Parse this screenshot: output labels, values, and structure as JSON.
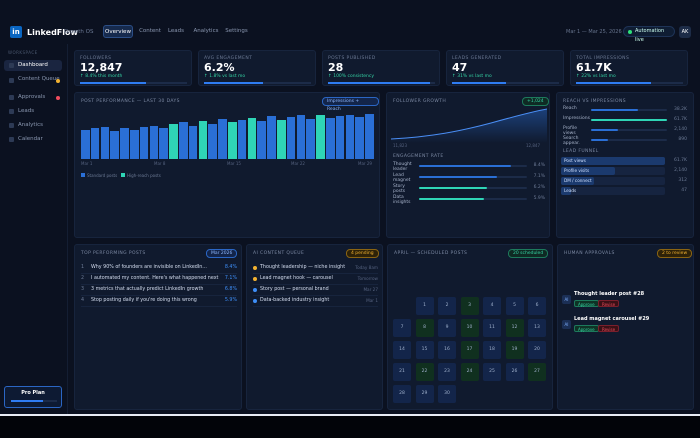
{
  "app": {
    "logo": "in",
    "name": "LinkedFlow",
    "subtitle": "Growth OS"
  },
  "nav": {
    "tabs": [
      "Overview",
      "Content",
      "Leads",
      "Analytics",
      "Settings"
    ],
    "active": 0
  },
  "header": {
    "date_range": "Mar 1 — Mar 25, 2026",
    "status": "Automation live",
    "avatar": "AK"
  },
  "sidebar": {
    "section": "WORKSPACE",
    "items": [
      {
        "label": "Dashboard",
        "active": true,
        "badge": null
      },
      {
        "label": "Content Queue",
        "badge": "#f2b231"
      },
      {
        "label": "Approvals",
        "badge": "#f04d5e"
      },
      {
        "label": "Leads",
        "badge": null
      },
      {
        "label": "Analytics",
        "badge": null
      },
      {
        "label": "Calendar",
        "badge": null
      }
    ],
    "plan": {
      "label": "Pro Plan",
      "usage": 0.7
    }
  },
  "kpis": [
    {
      "label": "FOLLOWERS",
      "value": "12,847",
      "change": "↑ 8.4% this month",
      "progress": 0.62
    },
    {
      "label": "AVG ENGAGEMENT",
      "value": "6.2%",
      "change": "↑ 1.8% vs last mo",
      "progress": 0.55
    },
    {
      "label": "POSTS PUBLISHED",
      "value": "28",
      "change": "↑ 100% consistency",
      "progress": 0.95
    },
    {
      "label": "LEADS GENERATED",
      "value": "47",
      "change": "↑ 31% vs last mo",
      "progress": 0.5
    },
    {
      "label": "TOTAL IMPRESSIONS",
      "value": "61.7K",
      "change": "↑ 22% vs last mo",
      "progress": 0.7
    }
  ],
  "post_performance": {
    "title": "POST PERFORMANCE — LAST 30 DAYS",
    "badge": "Impressions + Reach",
    "legend": [
      "Standard posts",
      "High-reach posts"
    ],
    "x_ticks": [
      "Mar 1",
      "Mar 8",
      "Mar 15",
      "Mar 22",
      "Mar 29"
    ]
  },
  "chart_data": {
    "type": "bar",
    "series": [
      {
        "values": [
          33,
          35,
          37,
          32,
          36,
          33,
          37,
          38,
          35,
          40,
          42,
          38,
          43,
          40,
          46,
          42,
          45,
          47,
          44,
          49,
          45,
          48,
          50,
          46,
          50,
          47,
          49,
          51,
          48,
          52
        ]
      }
    ],
    "highlight_indices": [
      9,
      12,
      15,
      17,
      20,
      24
    ],
    "colors": {
      "standard": "#2a6fd6",
      "high": "#2fd5b6"
    }
  },
  "follower_growth": {
    "title": "FOLLOWER GROWTH",
    "badge": "+1,024",
    "start": "11,823",
    "end": "12,847"
  },
  "engagement": {
    "title": "ENGAGEMENT RATE",
    "rows": [
      {
        "label": "Thought leader",
        "value": "8.4%",
        "pct": 0.84,
        "color": "#2a6fd6"
      },
      {
        "label": "Lead magnet",
        "value": "7.1%",
        "pct": 0.71,
        "color": "#2a6fd6"
      },
      {
        "label": "Story posts",
        "value": "6.2%",
        "pct": 0.62,
        "color": "#2fd5b6"
      },
      {
        "label": "Data insights",
        "value": "5.9%",
        "pct": 0.59,
        "color": "#2fd5b6"
      }
    ]
  },
  "reach": {
    "title": "REACH VS IMPRESSIONS",
    "rows": [
      {
        "label": "Reach",
        "value": "38.2K",
        "pct": 0.62,
        "color": "#2a6fd6"
      },
      {
        "label": "Impressions",
        "value": "61.7K",
        "pct": 1.0,
        "color": "#2fd5b6"
      },
      {
        "label": "Profile views",
        "value": "2,140",
        "pct": 0.36,
        "color": "#2a6fd6"
      },
      {
        "label": "Search appear.",
        "value": "890",
        "pct": 0.22,
        "color": "#2a6fd6"
      }
    ]
  },
  "funnel": {
    "title": "LEAD FUNNEL",
    "rows": [
      {
        "label": "Post views",
        "value": "61.7K",
        "pct": 1.0
      },
      {
        "label": "Profile visits",
        "value": "2,140",
        "pct": 0.52
      },
      {
        "label": "DM / connect",
        "value": "312",
        "pct": 0.32
      },
      {
        "label": "Leads",
        "value": "47",
        "pct": 0.1
      }
    ]
  },
  "top_posts": {
    "title": "TOP PERFORMING POSTS",
    "badge": "Mar 2026",
    "rows": [
      {
        "n": "1",
        "title": "Why 90% of founders are invisible on LinkedIn...",
        "value": "8.4%"
      },
      {
        "n": "2",
        "title": "I automated my content. Here's what happened next",
        "value": "7.1%"
      },
      {
        "n": "3",
        "title": "3 metrics that actually predict LinkedIn growth",
        "value": "6.8%"
      },
      {
        "n": "4",
        "title": "Stop posting daily if you're doing this wrong",
        "value": "5.9%"
      }
    ]
  },
  "queue": {
    "title": "AI CONTENT QUEUE",
    "badge": "4 pending",
    "rows": [
      {
        "title": "Thought leadership — niche insight",
        "meta": "Today 8am",
        "color": "#f2b231"
      },
      {
        "title": "Lead magnet hook — carousel",
        "meta": "Tomorrow",
        "color": "#f2b231"
      },
      {
        "title": "Story post — personal brand",
        "meta": "Mar 27",
        "color": "#3e8ef7"
      },
      {
        "title": "Data-backed industry insight",
        "meta": "Mar 1",
        "color": "#3e8ef7"
      }
    ]
  },
  "calendar": {
    "title": "APRIL — SCHEDULED POSTS",
    "badge": "20 scheduled",
    "days": [
      "",
      "1",
      "2",
      "3",
      "4",
      "5",
      "6",
      "7",
      "8",
      "9",
      "10",
      "11",
      "12",
      "13",
      "14",
      "15",
      "16",
      "17",
      "18",
      "19",
      "20",
      "21",
      "22",
      "23",
      "24",
      "25",
      "26",
      "27",
      "28",
      "29",
      "30",
      "",
      "",
      "",
      ""
    ],
    "scheduled": [
      3,
      8,
      10,
      12,
      17,
      19,
      22,
      24,
      27
    ]
  },
  "approvals": {
    "title": "HUMAN APPROVALS",
    "badge": "2 to review",
    "items": [
      {
        "icon": "AI",
        "title": "Thought leader post #28",
        "approve": "Approve",
        "review": "Revise"
      },
      {
        "icon": "AI",
        "title": "Lead magnet carousel #29",
        "approve": "Approve",
        "review": "Revise"
      }
    ]
  }
}
